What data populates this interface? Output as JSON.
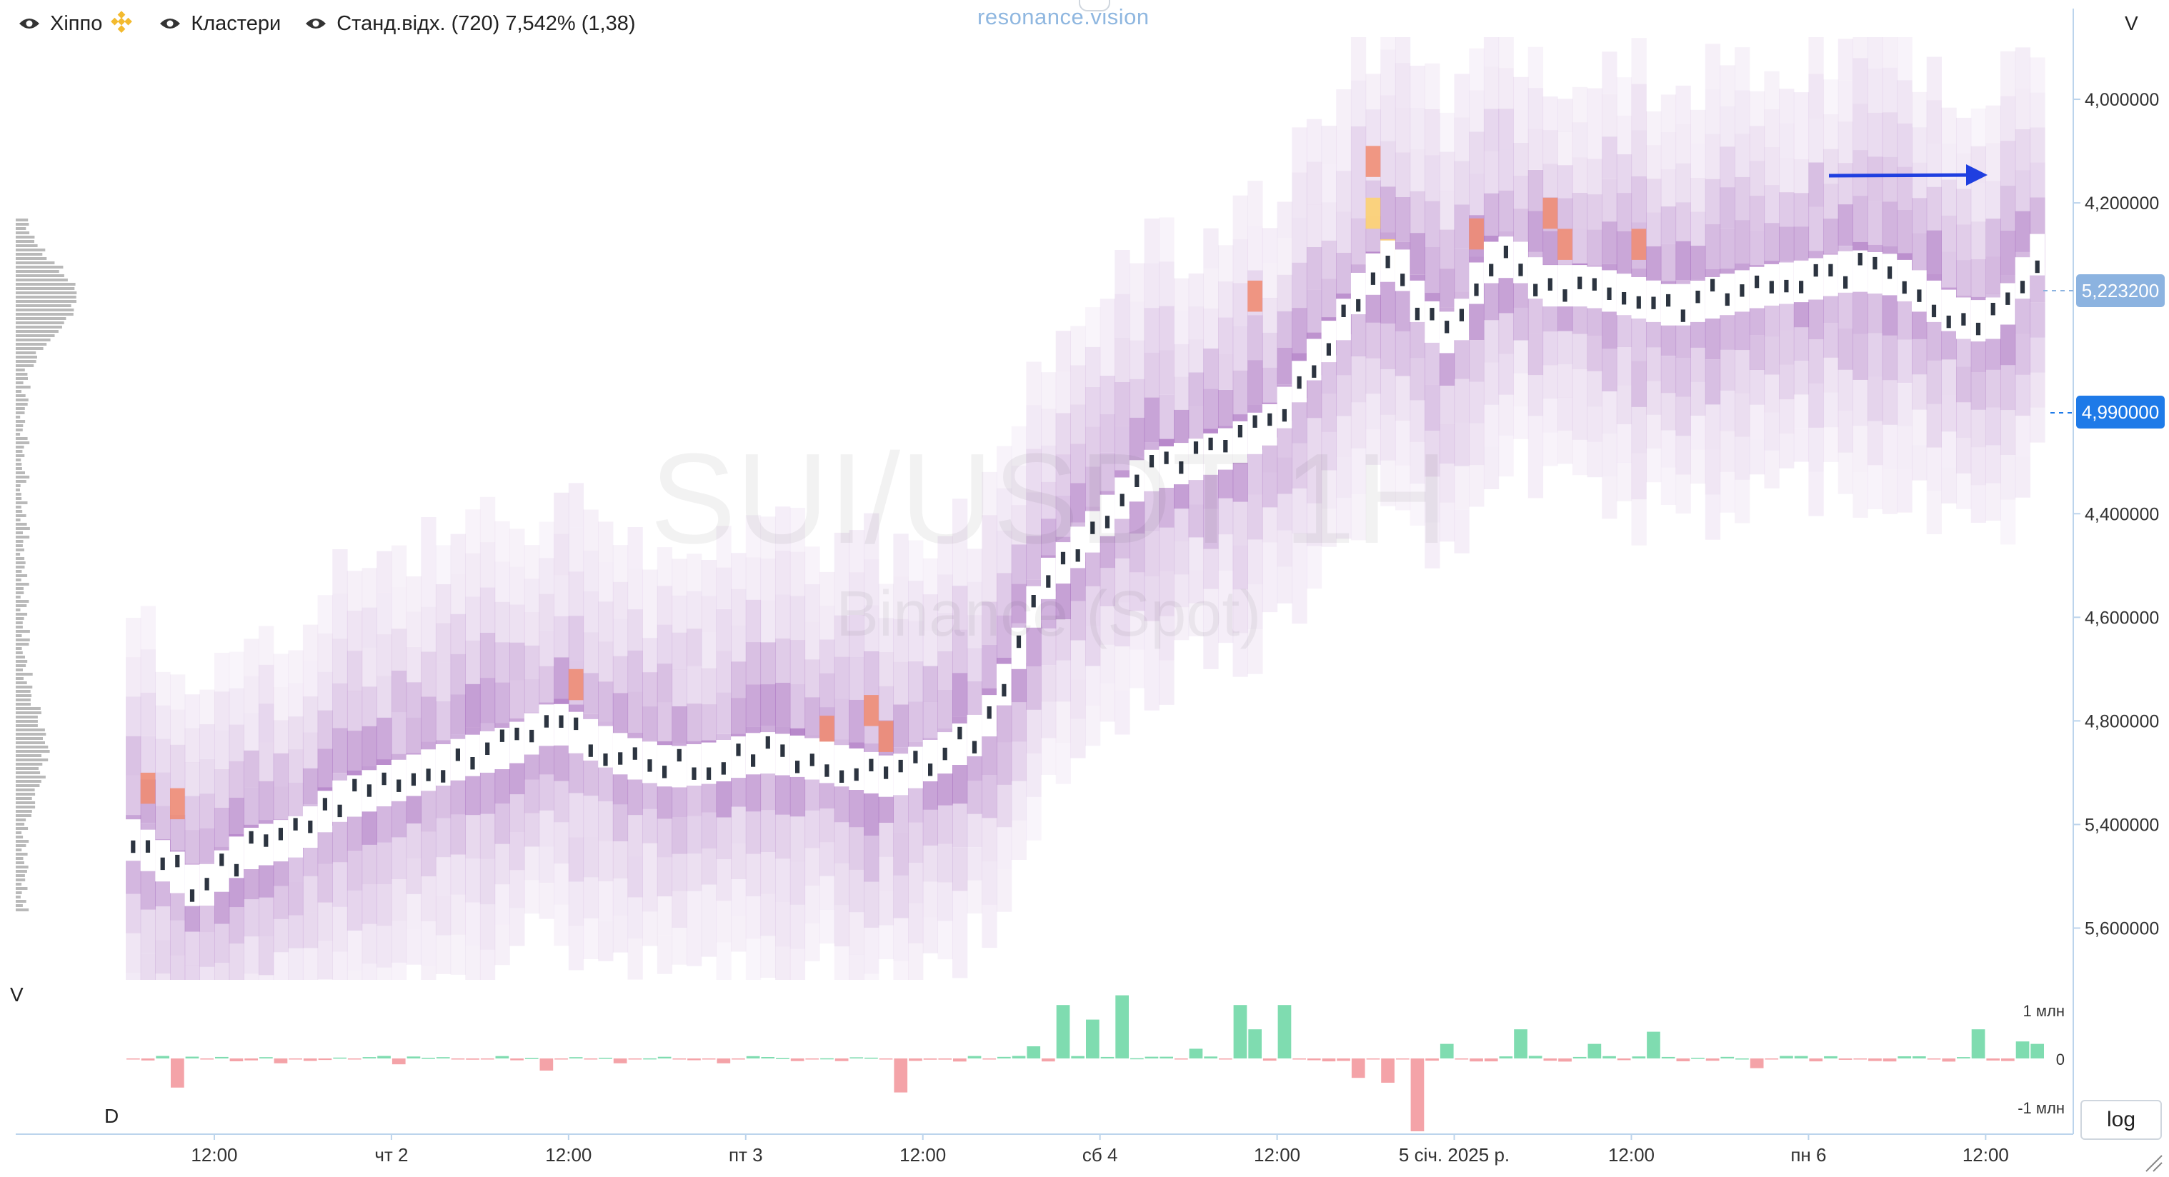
{
  "legend": {
    "symbol": "Хіппо",
    "clusters": "Кластери",
    "stddev": "Станд.відх. (720) 7,542% (1,38)"
  },
  "brand": "resonance.vision",
  "watermark": {
    "line1": "SUI/USDT 1H",
    "line2": "Binance (Spot)"
  },
  "axis": {
    "v_label_top": "V",
    "v_label_left": "V",
    "d_label": "D",
    "price_ticks": [
      "5,600000",
      "5,400000",
      "4,800000",
      "4,600000",
      "4,400000",
      "4,200000",
      "4,000000"
    ],
    "volume_ticks": [
      "1 млн",
      "0",
      "-1 млн"
    ],
    "time_ticks": [
      "12:00",
      "чт 2",
      "12:00",
      "пт 3",
      "12:00",
      "сб 4",
      "12:00",
      "5 січ. 2025 р.",
      "12:00",
      "пн 6",
      "12:00"
    ]
  },
  "price_tags": {
    "last": "5,223200",
    "current": "4,990000",
    "last_color": "#8cb3e0",
    "current_color": "#1e7ae8"
  },
  "log_button": "log",
  "colors": {
    "accent": "#1e7ae8",
    "cluster_base": "#9b59b6",
    "hot": "#f08a6e",
    "hotter": "#ffd36b",
    "vol_up": "#7fdcb0",
    "vol_down": "#f4a3a8",
    "arrow": "#1f3fe0"
  },
  "chart_data": {
    "type": "heatmap",
    "title": "SUI/USDT 1H",
    "subtitle": "Binance (Spot)",
    "ylim": [
      3.9,
      5.72
    ],
    "y_ticks": [
      4.0,
      4.2,
      4.4,
      4.6,
      4.8,
      5.4,
      5.6
    ],
    "last_price": 5.2232,
    "marked_price": 4.99,
    "x_range_hours": [
      0,
      130
    ],
    "x_ticks": [
      {
        "label": "12:00",
        "h": 6
      },
      {
        "label": "чт 2",
        "h": 18
      },
      {
        "label": "12:00",
        "h": 30
      },
      {
        "label": "пт 3",
        "h": 42
      },
      {
        "label": "12:00",
        "h": 54
      },
      {
        "label": "сб 4",
        "h": 66
      },
      {
        "label": "12:00",
        "h": 78
      },
      {
        "label": "5 січ. 2025 р.",
        "h": 90
      },
      {
        "label": "12:00",
        "h": 102
      },
      {
        "label": "пн 6",
        "h": 114
      },
      {
        "label": "12:00",
        "h": 126
      }
    ],
    "price_path": [
      [
        0,
        4.18
      ],
      [
        3,
        4.12
      ],
      [
        5,
        4.07
      ],
      [
        8,
        4.15
      ],
      [
        12,
        4.18
      ],
      [
        14,
        4.24
      ],
      [
        17,
        4.27
      ],
      [
        20,
        4.3
      ],
      [
        23,
        4.33
      ],
      [
        26,
        4.35
      ],
      [
        29,
        4.4
      ],
      [
        31,
        4.37
      ],
      [
        34,
        4.33
      ],
      [
        37,
        4.31
      ],
      [
        40,
        4.32
      ],
      [
        43,
        4.34
      ],
      [
        46,
        4.33
      ],
      [
        49,
        4.31
      ],
      [
        52,
        4.29
      ],
      [
        55,
        4.33
      ],
      [
        58,
        4.38
      ],
      [
        60,
        4.5
      ],
      [
        62,
        4.66
      ],
      [
        64,
        4.72
      ],
      [
        66,
        4.78
      ],
      [
        69,
        4.88
      ],
      [
        72,
        4.9
      ],
      [
        75,
        4.93
      ],
      [
        78,
        4.98
      ],
      [
        80,
        5.08
      ],
      [
        82,
        5.15
      ],
      [
        84,
        5.25
      ],
      [
        86,
        5.3
      ],
      [
        88,
        5.18
      ],
      [
        90,
        5.14
      ],
      [
        92,
        5.28
      ],
      [
        94,
        5.3
      ],
      [
        96,
        5.24
      ],
      [
        99,
        5.24
      ],
      [
        102,
        5.22
      ],
      [
        105,
        5.2
      ],
      [
        108,
        5.22
      ],
      [
        111,
        5.24
      ],
      [
        114,
        5.25
      ],
      [
        117,
        5.27
      ],
      [
        120,
        5.26
      ],
      [
        123,
        5.2
      ],
      [
        125,
        5.17
      ],
      [
        127,
        5.18
      ],
      [
        129,
        5.28
      ],
      [
        130,
        5.32
      ]
    ],
    "cluster_width": 0.4,
    "hot_zones": [
      {
        "h": 1,
        "price": 4.27,
        "level": 1
      },
      {
        "h": 3,
        "price": 4.24,
        "level": 1
      },
      {
        "h": 30,
        "price": 4.47,
        "level": 1
      },
      {
        "h": 47,
        "price": 4.38,
        "level": 1
      },
      {
        "h": 50,
        "price": 4.42,
        "level": 1
      },
      {
        "h": 51,
        "price": 4.37,
        "level": 1
      },
      {
        "h": 76,
        "price": 5.22,
        "level": 1
      },
      {
        "h": 84,
        "price": 5.48,
        "level": 1
      },
      {
        "h": 84,
        "price": 5.38,
        "level": 2
      },
      {
        "h": 85,
        "price": 5.3,
        "level": 2
      },
      {
        "h": 91,
        "price": 5.34,
        "level": 1
      },
      {
        "h": 96,
        "price": 5.38,
        "level": 1
      },
      {
        "h": 97,
        "price": 5.32,
        "level": 1
      },
      {
        "h": 102,
        "price": 5.32,
        "level": 1
      }
    ],
    "volume_delta": [
      {
        "h": 3,
        "v": -0.6
      },
      {
        "h": 10,
        "v": -0.1
      },
      {
        "h": 18,
        "v": -0.12
      },
      {
        "h": 28,
        "v": -0.25
      },
      {
        "h": 33,
        "v": -0.1
      },
      {
        "h": 40,
        "v": -0.1
      },
      {
        "h": 52,
        "v": -0.7
      },
      {
        "h": 61,
        "v": 0.25
      },
      {
        "h": 63,
        "v": 1.1
      },
      {
        "h": 65,
        "v": 0.8
      },
      {
        "h": 67,
        "v": 1.3
      },
      {
        "h": 72,
        "v": 0.2
      },
      {
        "h": 75,
        "v": 1.1
      },
      {
        "h": 76,
        "v": 0.6
      },
      {
        "h": 78,
        "v": 1.1
      },
      {
        "h": 83,
        "v": -0.4
      },
      {
        "h": 85,
        "v": -0.5
      },
      {
        "h": 87,
        "v": -1.5
      },
      {
        "h": 89,
        "v": 0.3
      },
      {
        "h": 94,
        "v": 0.6
      },
      {
        "h": 99,
        "v": 0.3
      },
      {
        "h": 103,
        "v": 0.55
      },
      {
        "h": 110,
        "v": -0.2
      },
      {
        "h": 125,
        "v": 0.6
      },
      {
        "h": 128,
        "v": 0.35
      },
      {
        "h": 129,
        "v": 0.3
      }
    ]
  }
}
